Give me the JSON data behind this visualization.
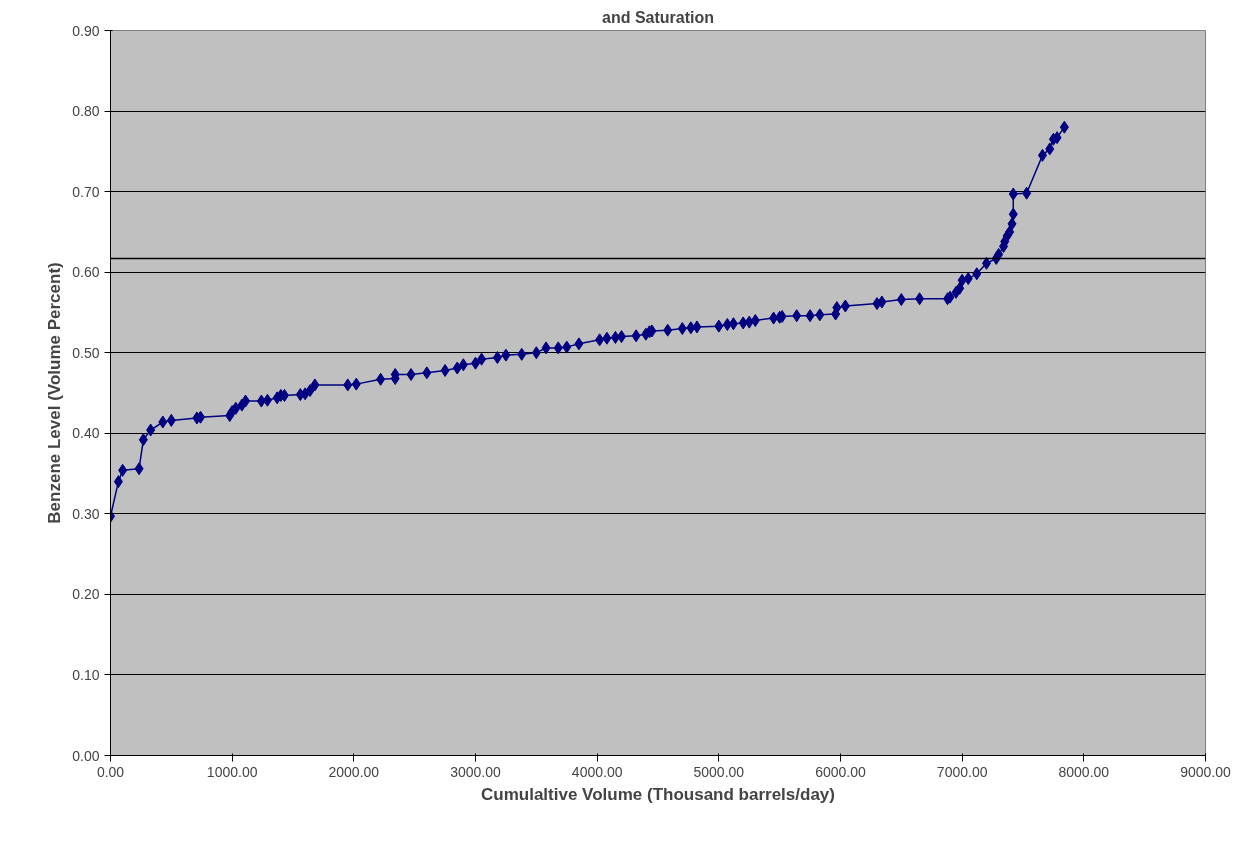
{
  "chart_data": {
    "type": "line",
    "title": "and Saturation",
    "xlabel": "Cumulaltive Volume (Thousand barrels/day)",
    "ylabel": "Benzene Level (Volume Percent)",
    "xlim": [
      0,
      9000
    ],
    "ylim": [
      0,
      0.9
    ],
    "xticks": [
      {
        "value": 0,
        "label": "0.00"
      },
      {
        "value": 1000,
        "label": "1000.00"
      },
      {
        "value": 2000,
        "label": "2000.00"
      },
      {
        "value": 3000,
        "label": "3000.00"
      },
      {
        "value": 4000,
        "label": "4000.00"
      },
      {
        "value": 5000,
        "label": "5000.00"
      },
      {
        "value": 6000,
        "label": "6000.00"
      },
      {
        "value": 7000,
        "label": "7000.00"
      },
      {
        "value": 8000,
        "label": "8000.00"
      },
      {
        "value": 9000,
        "label": "9000.00"
      }
    ],
    "yticks": [
      {
        "value": 0,
        "label": "0.00"
      },
      {
        "value": 0.1,
        "label": "0.10"
      },
      {
        "value": 0.2,
        "label": "0.20"
      },
      {
        "value": 0.3,
        "label": "0.30"
      },
      {
        "value": 0.4,
        "label": "0.40"
      },
      {
        "value": 0.5,
        "label": "0.50"
      },
      {
        "value": 0.6,
        "label": "0.60"
      },
      {
        "value": 0.7,
        "label": "0.70"
      },
      {
        "value": 0.8,
        "label": "0.80"
      },
      {
        "value": 0.9,
        "label": "0.90"
      }
    ],
    "grid": "y",
    "marker": "diamond",
    "line_style": "solid",
    "ref_lines": [
      {
        "axis": "y",
        "value": 0.617,
        "color": "#000000"
      }
    ],
    "series": [
      {
        "color": "#000080",
        "x": [
          0,
          65,
          100,
          235,
          270,
          330,
          430,
          500,
          710,
          740,
          980,
          1000,
          1030,
          1080,
          1110,
          1240,
          1290,
          1370,
          1400,
          1430,
          1560,
          1600,
          1640,
          1680,
          1950,
          2020,
          2220,
          2340,
          2340,
          2470,
          2600,
          2750,
          2850,
          2900,
          3000,
          3050,
          3180,
          3250,
          3380,
          3500,
          3580,
          3680,
          3750,
          3850,
          4020,
          4080,
          4150,
          4200,
          4320,
          4400,
          4430,
          4450,
          4580,
          4700,
          4770,
          4820,
          5000,
          5070,
          5120,
          5200,
          5250,
          5300,
          5450,
          5500,
          5520,
          5640,
          5750,
          5830,
          5960,
          5970,
          6040,
          6300,
          6340,
          6500,
          6650,
          6880,
          6900,
          6950,
          6980,
          7000,
          7050,
          7120,
          7200,
          7280,
          7300,
          7340,
          7350,
          7370,
          7390,
          7410,
          7420,
          7420,
          7530,
          7660,
          7720,
          7750,
          7780,
          7840
        ],
        "values": [
          0.297,
          0.34,
          0.354,
          0.356,
          0.392,
          0.404,
          0.414,
          0.416,
          0.419,
          0.42,
          0.422,
          0.427,
          0.431,
          0.435,
          0.44,
          0.44,
          0.441,
          0.444,
          0.447,
          0.447,
          0.448,
          0.449,
          0.453,
          0.46,
          0.46,
          0.461,
          0.467,
          0.468,
          0.473,
          0.473,
          0.475,
          0.478,
          0.481,
          0.485,
          0.487,
          0.492,
          0.494,
          0.497,
          0.498,
          0.5,
          0.506,
          0.506,
          0.507,
          0.511,
          0.516,
          0.518,
          0.519,
          0.52,
          0.521,
          0.523,
          0.526,
          0.527,
          0.528,
          0.53,
          0.531,
          0.532,
          0.533,
          0.535,
          0.536,
          0.537,
          0.538,
          0.54,
          0.543,
          0.544,
          0.545,
          0.546,
          0.546,
          0.547,
          0.548,
          0.556,
          0.558,
          0.561,
          0.563,
          0.566,
          0.567,
          0.567,
          0.569,
          0.575,
          0.58,
          0.59,
          0.592,
          0.598,
          0.611,
          0.617,
          0.622,
          0.632,
          0.638,
          0.645,
          0.65,
          0.66,
          0.672,
          0.697,
          0.698,
          0.745,
          0.753,
          0.765,
          0.767,
          0.78
        ]
      }
    ]
  }
}
